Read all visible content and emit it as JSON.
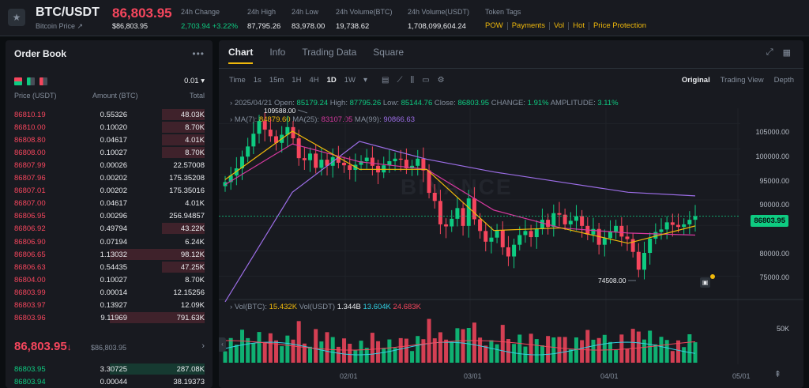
{
  "header": {
    "pair": "BTC/USDT",
    "subtitle": "Bitcoin Price",
    "last_price": "86,803.95",
    "last_price_usd": "$86,803.95",
    "stats": [
      {
        "label": "24h Change",
        "value": "2,703.94 +3.22%",
        "green": true
      },
      {
        "label": "24h High",
        "value": "87,795.26"
      },
      {
        "label": "24h Low",
        "value": "83,978.00"
      },
      {
        "label": "24h Volume(BTC)",
        "value": "19,738.62"
      },
      {
        "label": "24h Volume(USDT)",
        "value": "1,708,099,604.24"
      }
    ],
    "tags_label": "Token Tags",
    "tags": [
      "POW",
      "Payments",
      "Vol",
      "Hot",
      "Price Protection"
    ]
  },
  "orderbook": {
    "title": "Order Book",
    "tick_size": "0.01",
    "headers": {
      "price": "Price (USDT)",
      "amount": "Amount (BTC)",
      "total": "Total"
    },
    "asks": [
      {
        "price": "86810.19",
        "amount": "0.55326",
        "total": "48.03K",
        "depth": 0.45
      },
      {
        "price": "86810.00",
        "amount": "0.10020",
        "total": "8.70K",
        "depth": 0.45
      },
      {
        "price": "86808.80",
        "amount": "0.04617",
        "total": "4.01K",
        "depth": 0.45
      },
      {
        "price": "86808.00",
        "amount": "0.10027",
        "total": "8.70K",
        "depth": 0.45
      },
      {
        "price": "86807.99",
        "amount": "0.00026",
        "total": "22.57008",
        "depth": 0.0
      },
      {
        "price": "86807.96",
        "amount": "0.00202",
        "total": "175.35208",
        "depth": 0.0
      },
      {
        "price": "86807.01",
        "amount": "0.00202",
        "total": "175.35016",
        "depth": 0.0
      },
      {
        "price": "86807.00",
        "amount": "0.04617",
        "total": "4.01K",
        "depth": 0.0
      },
      {
        "price": "86806.95",
        "amount": "0.00296",
        "total": "256.94857",
        "depth": 0.0
      },
      {
        "price": "86806.92",
        "amount": "0.49794",
        "total": "43.22K",
        "depth": 0.45
      },
      {
        "price": "86806.90",
        "amount": "0.07194",
        "total": "6.24K",
        "depth": 0.0
      },
      {
        "price": "86806.65",
        "amount": "1.13032",
        "total": "98.12K",
        "depth": 1.0
      },
      {
        "price": "86806.63",
        "amount": "0.54435",
        "total": "47.25K",
        "depth": 0.45
      },
      {
        "price": "86804.00",
        "amount": "0.10027",
        "total": "8.70K",
        "depth": 0.0
      },
      {
        "price": "86803.99",
        "amount": "0.00014",
        "total": "12.15256",
        "depth": 0.0
      },
      {
        "price": "86803.97",
        "amount": "0.13927",
        "total": "12.09K",
        "depth": 0.0
      },
      {
        "price": "86803.96",
        "amount": "9.11969",
        "total": "791.63K",
        "depth": 1.0
      }
    ],
    "mid_price": "86,803.95",
    "mid_price_usd": "$86,803.95",
    "bids": [
      {
        "price": "86803.95",
        "amount": "3.30725",
        "total": "287.08K",
        "depth": 1.0
      },
      {
        "price": "86803.94",
        "amount": "0.00044",
        "total": "38.19373",
        "depth": 0.0
      }
    ]
  },
  "chart_panel": {
    "tabs": [
      "Chart",
      "Info",
      "Trading Data",
      "Square"
    ],
    "intervals": [
      "Time",
      "1s",
      "15m",
      "1H",
      "4H",
      "1D",
      "1W"
    ],
    "active_interval": "1D",
    "views": [
      "Original",
      "Trading View",
      "Depth"
    ],
    "ohlc": {
      "date": "2025/04/21",
      "open_label": "Open:",
      "open": "85179.24",
      "high_label": "High:",
      "high": "87795.26",
      "low_label": "Low:",
      "low": "85144.76",
      "close_label": "Close:",
      "close": "86803.95",
      "change_label": "CHANGE:",
      "change": "1.91%",
      "amplitude_label": "AMPLITUDE:",
      "amplitude": "3.11%"
    },
    "ma": {
      "ma7_label": "MA(7):",
      "ma7": "84879.60",
      "ma25_label": "MA(25):",
      "ma25": "83107.05",
      "ma99_label": "MA(99):",
      "ma99": "90866.63"
    },
    "vol": {
      "btc_label": "Vol(BTC):",
      "btc": "15.432K",
      "usdt_label": "Vol(USDT)",
      "usdt": "1.344B",
      "v1": "13.604K",
      "v2": "24.683K"
    },
    "high_marker": "109588.00",
    "low_marker": "74508.00",
    "current_price_tag": "86803.95",
    "vol_axis_label": "50K",
    "watermark": "BINANCE",
    "colors": {
      "up": "#0ecb81",
      "down": "#f6465d",
      "ma7": "#f0b90b",
      "ma25": "#d6399f",
      "ma99": "#9d6ee8",
      "accent": "#f0b90b"
    }
  },
  "chart_data": {
    "type": "candlestick",
    "xlabel": "",
    "ylabel": "",
    "y_ticks": [
      105000,
      100000,
      95000,
      90000,
      85000,
      80000,
      75000
    ],
    "y_tick_labels": [
      "105000.00",
      "100000.00",
      "95000.00",
      "90000.00",
      "85000.00",
      "80000.00",
      "75000.00"
    ],
    "x_tick_labels": [
      "02/01",
      "03/01",
      "04/01",
      "05/01"
    ],
    "ylim": [
      72000,
      108000
    ],
    "series": [
      {
        "name": "MA(99)",
        "values": [
          70000,
          91500,
          101500,
          98000,
          95500,
          93500,
          91500,
          90800
        ]
      },
      {
        "name": "MA(25)",
        "values": [
          93000,
          101000,
          97500,
          96000,
          88000,
          84500,
          83500,
          83100
        ]
      },
      {
        "name": "MA(7)",
        "values": [
          94000,
          103500,
          96000,
          96000,
          84000,
          84500,
          81500,
          84900
        ]
      }
    ],
    "candles_close": [
      93500,
      94800,
      96200,
      98500,
      100500,
      103000,
      105500,
      103800,
      102500,
      101200,
      102800,
      104300,
      102100,
      98200,
      97800,
      99100,
      96300,
      97900,
      96700,
      98400,
      97300,
      96800,
      95900,
      96900,
      97600,
      98300,
      96700,
      95400,
      96800,
      97600,
      98100,
      97900,
      96200,
      96700,
      98100,
      95800,
      91400,
      89800,
      85200,
      84800,
      86300,
      88400,
      84900,
      90300,
      86200,
      83900,
      81800,
      82600,
      84100,
      80700,
      78900,
      81200,
      83100,
      83900,
      82700,
      84300,
      86100,
      84700,
      87400,
      87100,
      85200,
      85900,
      86800,
      84900,
      83200,
      84300,
      81200,
      82500,
      83800,
      84900,
      82800,
      82300,
      79800,
      76300,
      79600,
      82400,
      83700,
      84200,
      85600,
      85100,
      84700,
      85200,
      86100,
      86804
    ],
    "volume_ticks": [
      "50K"
    ]
  }
}
